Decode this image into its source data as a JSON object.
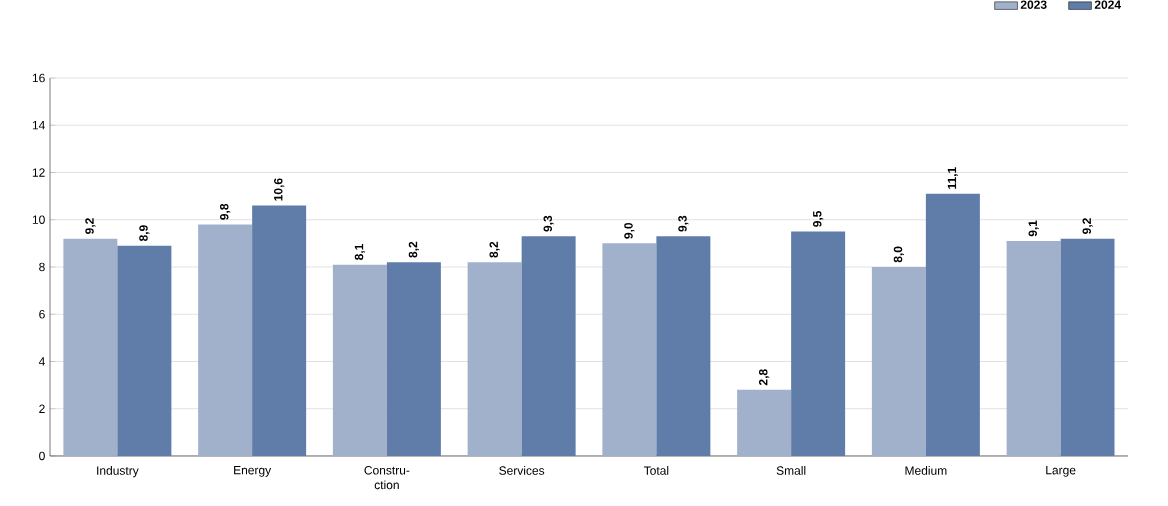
{
  "chart_data": {
    "type": "bar",
    "categories": [
      "Industry",
      "Energy",
      "Constru-ction",
      "Services",
      "Total",
      "Small",
      "Medium",
      "Large"
    ],
    "series": [
      {
        "name": "2023",
        "color": "#a2b1cb",
        "values": [
          9.2,
          9.8,
          8.1,
          8.2,
          9.0,
          2.8,
          8.0,
          9.1
        ],
        "value_labels": [
          "9,2",
          "9,8",
          "8,1",
          "8,2",
          "9,0",
          "2,8",
          "8,0",
          "9,1"
        ]
      },
      {
        "name": "2024",
        "color": "#607daa",
        "values": [
          8.9,
          10.6,
          8.2,
          9.3,
          9.3,
          9.5,
          11.1,
          9.2
        ],
        "value_labels": [
          "8,9",
          "10,6",
          "8,2",
          "9,3",
          "9,3",
          "9,5",
          "11,1",
          "9,2"
        ]
      }
    ],
    "ylim": [
      0,
      16
    ],
    "yticks": [
      0,
      2,
      4,
      6,
      8,
      10,
      12,
      14,
      16
    ],
    "grid": "y",
    "legend": "top right"
  }
}
